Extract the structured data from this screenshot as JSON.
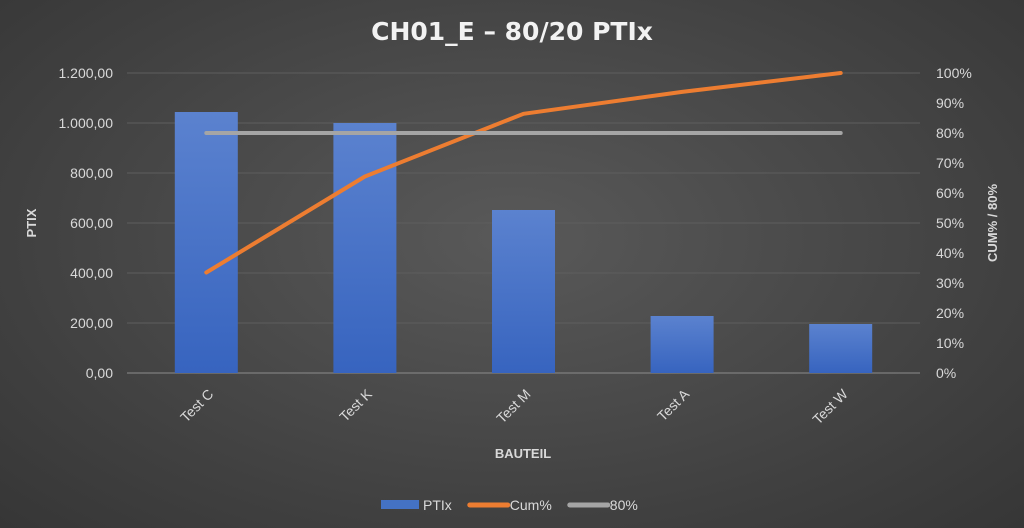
{
  "chart_data": {
    "type": "bar",
    "title": "CH01_E – 80/20 PTIx",
    "xlabel": "BAUTEIL",
    "ylabel": "PTIX",
    "y2label": "CUM% / 80%",
    "categories": [
      "Test C",
      "Test K",
      "Test M",
      "Test A",
      "Test W"
    ],
    "ylim": [
      0,
      1200
    ],
    "y2lim": [
      0,
      100
    ],
    "yticks": [
      "0,00",
      "200,00",
      "400,00",
      "600,00",
      "800,00",
      "1.000,00",
      "1.200,00"
    ],
    "y2ticks": [
      "0%",
      "10%",
      "20%",
      "30%",
      "40%",
      "50%",
      "60%",
      "70%",
      "80%",
      "90%",
      "100%"
    ],
    "grid": true,
    "legend_position": "bottom",
    "series": [
      {
        "name": "PTIx",
        "type": "bar",
        "axis": "left",
        "color": "#4472c4",
        "values": [
          1044,
          1000,
          652,
          228,
          196
        ]
      },
      {
        "name": "Cum%",
        "type": "line",
        "axis": "right",
        "color": "#ed7d31",
        "values": [
          33.5,
          65.5,
          86.4,
          93.7,
          100
        ]
      },
      {
        "name": "80%",
        "type": "line",
        "axis": "right",
        "color": "#a5a5a5",
        "values": [
          80,
          80,
          80,
          80,
          80
        ]
      }
    ]
  }
}
